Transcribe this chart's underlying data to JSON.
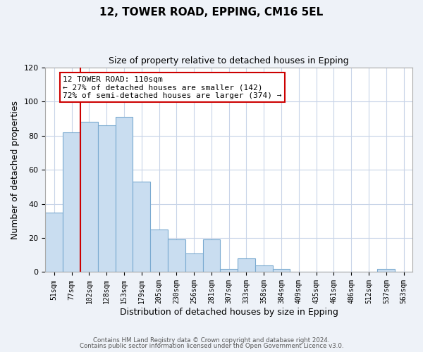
{
  "title": "12, TOWER ROAD, EPPING, CM16 5EL",
  "subtitle": "Size of property relative to detached houses in Epping",
  "xlabel": "Distribution of detached houses by size in Epping",
  "ylabel": "Number of detached properties",
  "bar_labels": [
    "51sqm",
    "77sqm",
    "102sqm",
    "128sqm",
    "153sqm",
    "179sqm",
    "205sqm",
    "230sqm",
    "256sqm",
    "281sqm",
    "307sqm",
    "333sqm",
    "358sqm",
    "384sqm",
    "409sqm",
    "435sqm",
    "461sqm",
    "486sqm",
    "512sqm",
    "537sqm",
    "563sqm"
  ],
  "bar_values": [
    35,
    82,
    88,
    86,
    91,
    53,
    25,
    19,
    11,
    19,
    2,
    8,
    4,
    2,
    0,
    0,
    0,
    0,
    0,
    2,
    0
  ],
  "bar_color": "#c9ddf0",
  "bar_edge_color": "#7aaad0",
  "vline_x_bar_index": 2,
  "vline_color": "#cc0000",
  "annotation_title": "12 TOWER ROAD: 110sqm",
  "annotation_line1": "← 27% of detached houses are smaller (142)",
  "annotation_line2": "72% of semi-detached houses are larger (374) →",
  "annotation_box_color": "#ffffff",
  "annotation_box_edge": "#cc0000",
  "ylim": [
    0,
    120
  ],
  "yticks": [
    0,
    20,
    40,
    60,
    80,
    100,
    120
  ],
  "footer1": "Contains HM Land Registry data © Crown copyright and database right 2024.",
  "footer2": "Contains public sector information licensed under the Open Government Licence v3.0.",
  "background_color": "#eef2f8",
  "plot_background": "#ffffff",
  "grid_color": "#c8d4e8"
}
